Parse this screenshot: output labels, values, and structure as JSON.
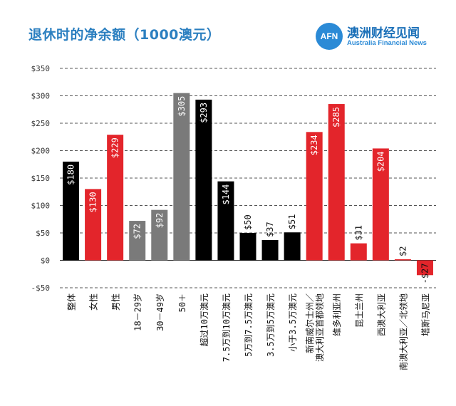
{
  "title": "退休时的净余额（1000澳元）",
  "brand": {
    "logo_text": "AFN",
    "name_cn": "澳洲财经见闻",
    "name_en": "Australia Financial News"
  },
  "colors": {
    "black": "#000000",
    "red": "#e3252b",
    "gray": "#7a7a7a",
    "title": "#2b7fc0"
  },
  "chart_data": {
    "type": "bar",
    "title": "退休时的净余额（1000澳元）",
    "xlabel": "",
    "ylabel": "",
    "ylim": [
      -50,
      350
    ],
    "yticks": [
      -50,
      0,
      50,
      100,
      150,
      200,
      250,
      300,
      350
    ],
    "ytick_labels": [
      "-$50",
      "$0",
      "$50",
      "$100",
      "$150",
      "$200",
      "$250",
      "$300",
      "$350"
    ],
    "grid": true,
    "categories": [
      "整体",
      "女性",
      "男性",
      "18－29岁",
      "30－49岁",
      "50＋",
      "超过10万澳元",
      "7.5万到10万澳元",
      "5万到7.5万澳元",
      "3.5万到5万澳元",
      "小于3.5万澳元",
      "新南威尔士州／澳大利亚首都领地",
      "维多利亚州",
      "昆士兰州",
      "西澳大利亚",
      "南澳大利亚／北领地",
      "塔斯马尼亚"
    ],
    "category_lines": [
      [
        "整体"
      ],
      [
        "女性"
      ],
      [
        "男性"
      ],
      [
        "18－29岁"
      ],
      [
        "30－49岁"
      ],
      [
        "50＋"
      ],
      [
        "超过10万澳元"
      ],
      [
        "7.5万到10万澳元"
      ],
      [
        "5万到7.5万澳元"
      ],
      [
        "3.5万到5万澳元"
      ],
      [
        "小于3.5万澳元"
      ],
      [
        "新南威尔士州／",
        "澳大利亚首都领地"
      ],
      [
        "维多利亚州"
      ],
      [
        "昆士兰州"
      ],
      [
        "西澳大利亚"
      ],
      [
        "南澳大利亚／北领地"
      ],
      [
        "塔斯马尼亚"
      ]
    ],
    "values": [
      180,
      130,
      229,
      72,
      92,
      305,
      293,
      144,
      50,
      37,
      51,
      234,
      285,
      31,
      204,
      2,
      -27
    ],
    "data_labels": [
      "$180",
      "$130",
      "$229",
      "$72",
      "$92",
      "$305",
      "$293",
      "$144",
      "$50",
      "$37",
      "$51",
      "$234",
      "$285",
      "$31",
      "$204",
      "$2",
      "-$27"
    ],
    "bar_colors": [
      "black",
      "red",
      "red",
      "gray",
      "gray",
      "gray",
      "black",
      "black",
      "black",
      "black",
      "black",
      "red",
      "red",
      "red",
      "red",
      "red",
      "red"
    ]
  }
}
